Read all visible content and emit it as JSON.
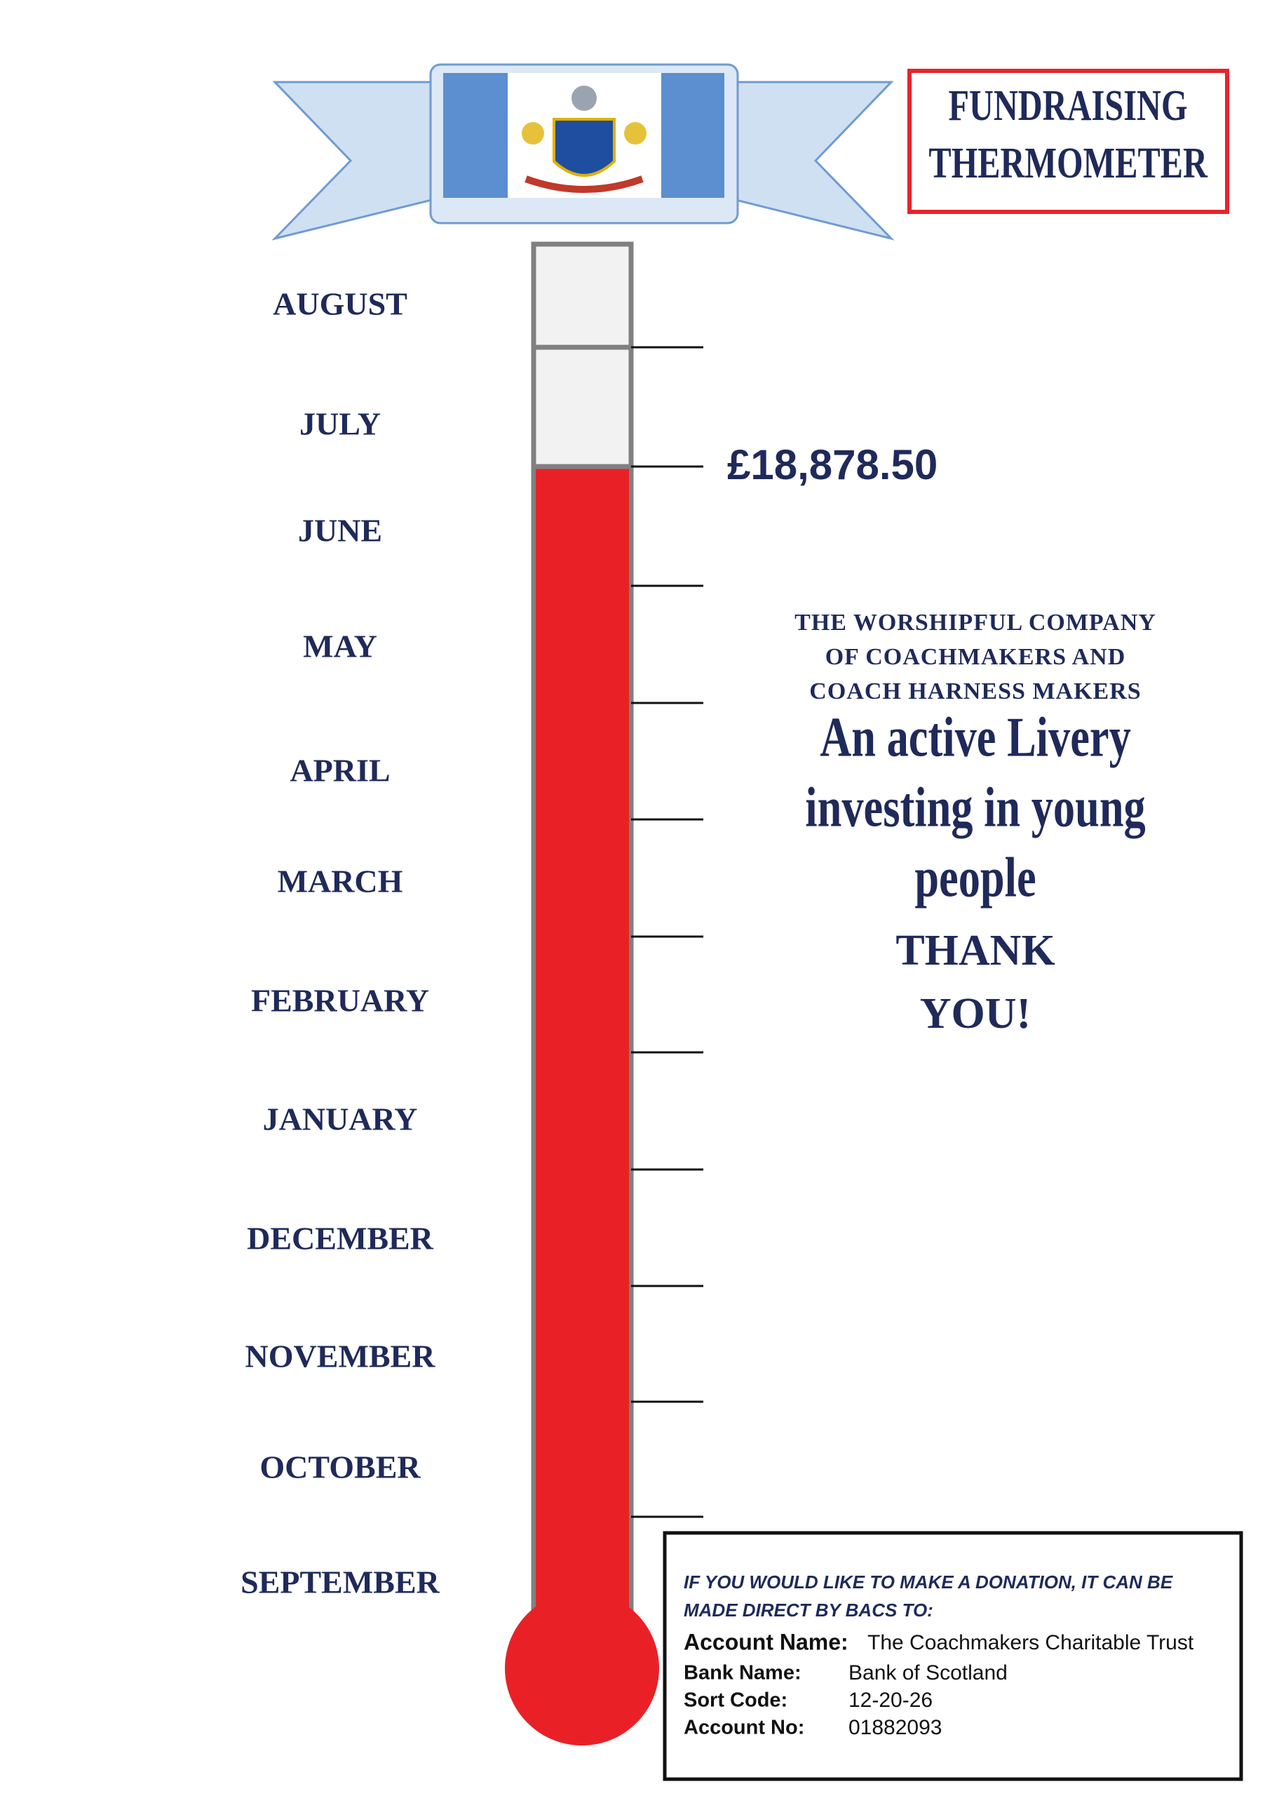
{
  "header": {
    "title": [
      "FUNDRAISING",
      "THERMOMETER"
    ]
  },
  "thermometer": {
    "months": [
      "AUGUST",
      "JULY",
      "JUNE",
      "MAY",
      "APRIL",
      "MARCH",
      "FEBRUARY",
      "JANUARY",
      "DECEMBER",
      "NOVEMBER",
      "OCTOBER",
      "SEPTEMBER"
    ],
    "amount": "£18,878.50"
  },
  "organisation": [
    "THE WORSHIPFUL COMPANY",
    "OF COACHMAKERS AND",
    "COACH HARNESS MAKERS"
  ],
  "slogan": [
    "An active Livery",
    "investing in young",
    "people"
  ],
  "thanks": [
    "THANK",
    "YOU!"
  ],
  "donation": {
    "intro": [
      "IF YOU WOULD LIKE TO MAKE A DONATION, IT CAN BE",
      "MADE DIRECT BY BACS TO:"
    ],
    "fields": [
      {
        "label": "Account Name:",
        "value": "The Coachmakers Charitable Trust"
      },
      {
        "label": "Bank Name:",
        "value": "Bank of Scotland"
      },
      {
        "label": "Sort Code:",
        "value": "12-20-26"
      },
      {
        "label": "Account No:",
        "value": "01882093"
      }
    ]
  }
}
